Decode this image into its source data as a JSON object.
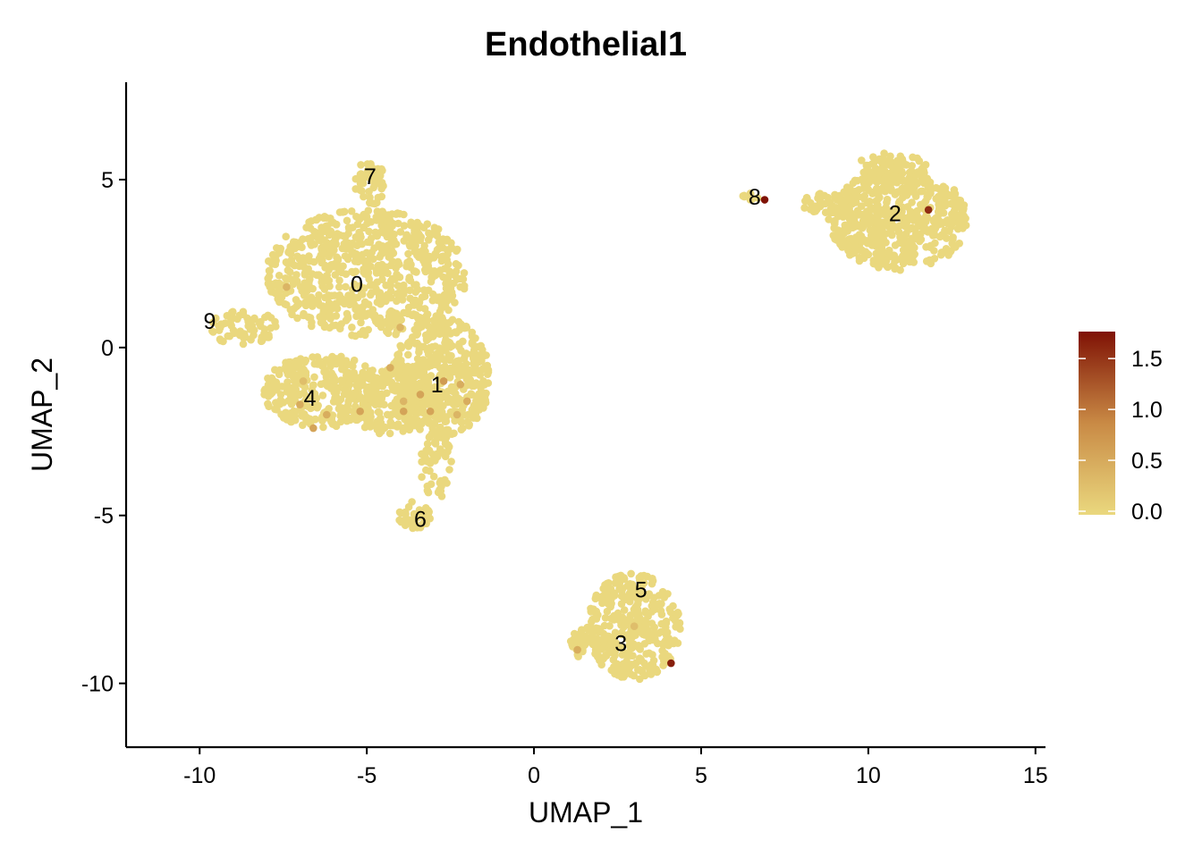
{
  "chart_data": {
    "type": "scatter",
    "title": "Endothelial1",
    "xlabel": "UMAP_1",
    "ylabel": "UMAP_2",
    "xlim": [
      -12.2,
      15.3
    ],
    "ylim": [
      -11.9,
      7.9
    ],
    "xticks": [
      -10,
      -5,
      0,
      5,
      10,
      15
    ],
    "xtick_labels": [
      "-10",
      "-5",
      "0",
      "5",
      "10",
      "15"
    ],
    "yticks": [
      -10,
      -5,
      0,
      5
    ],
    "ytick_labels": [
      "-10",
      "-5",
      "0",
      "5"
    ],
    "grid": false,
    "color_scale": {
      "low": "#ead87e",
      "mid": "#c98a45",
      "high": "#7f1205",
      "range": [
        0,
        1.8
      ],
      "ticks": [
        0,
        0.5,
        1.0,
        1.5
      ],
      "tick_labels": [
        "0.0",
        "0.5",
        "1.0",
        "1.5"
      ],
      "legend_position": "right"
    },
    "clusters": [
      {
        "label": "0",
        "x": -5.3,
        "y": 1.9
      },
      {
        "label": "1",
        "x": -2.9,
        "y": -1.1
      },
      {
        "label": "2",
        "x": 10.8,
        "y": 4.0
      },
      {
        "label": "3",
        "x": 2.6,
        "y": -8.8
      },
      {
        "label": "4",
        "x": -6.7,
        "y": -1.5
      },
      {
        "label": "5",
        "x": 3.2,
        "y": -7.2
      },
      {
        "label": "6",
        "x": -3.4,
        "y": -5.1
      },
      {
        "label": "7",
        "x": -4.9,
        "y": 5.1
      },
      {
        "label": "8",
        "x": 6.6,
        "y": 4.5
      },
      {
        "label": "9",
        "x": -9.7,
        "y": 0.8
      }
    ],
    "highlighted_points": [
      {
        "x": 6.9,
        "y": 4.4,
        "value": 1.8
      },
      {
        "x": 11.8,
        "y": 4.1,
        "value": 1.6
      },
      {
        "x": 4.1,
        "y": -9.4,
        "value": 1.7
      },
      {
        "x": -2.7,
        "y": -1.0,
        "value": 0.7
      },
      {
        "x": -3.4,
        "y": -1.4,
        "value": 0.6
      },
      {
        "x": -3.9,
        "y": -1.9,
        "value": 0.6
      },
      {
        "x": -4.3,
        "y": -0.6,
        "value": 0.5
      },
      {
        "x": -5.2,
        "y": -1.9,
        "value": 0.6
      },
      {
        "x": -6.2,
        "y": -2.0,
        "value": 0.5
      },
      {
        "x": -6.6,
        "y": -2.4,
        "value": 0.6
      },
      {
        "x": -7.0,
        "y": -1.7,
        "value": 0.5
      },
      {
        "x": -7.4,
        "y": 1.8,
        "value": 0.4
      },
      {
        "x": -4.0,
        "y": 0.6,
        "value": 0.4
      },
      {
        "x": -2.2,
        "y": -1.1,
        "value": 0.5
      },
      {
        "x": -2.0,
        "y": -1.6,
        "value": 0.5
      },
      {
        "x": -3.1,
        "y": -1.9,
        "value": 0.6
      },
      {
        "x": -2.3,
        "y": -2.0,
        "value": 0.4
      },
      {
        "x": -3.9,
        "y": -1.6,
        "value": 0.4
      },
      {
        "x": 1.3,
        "y": -9.0,
        "value": 0.5
      },
      {
        "x": 3.0,
        "y": -8.3,
        "value": 0.3
      },
      {
        "x": -6.9,
        "y": -1.0,
        "value": 0.3
      }
    ]
  }
}
